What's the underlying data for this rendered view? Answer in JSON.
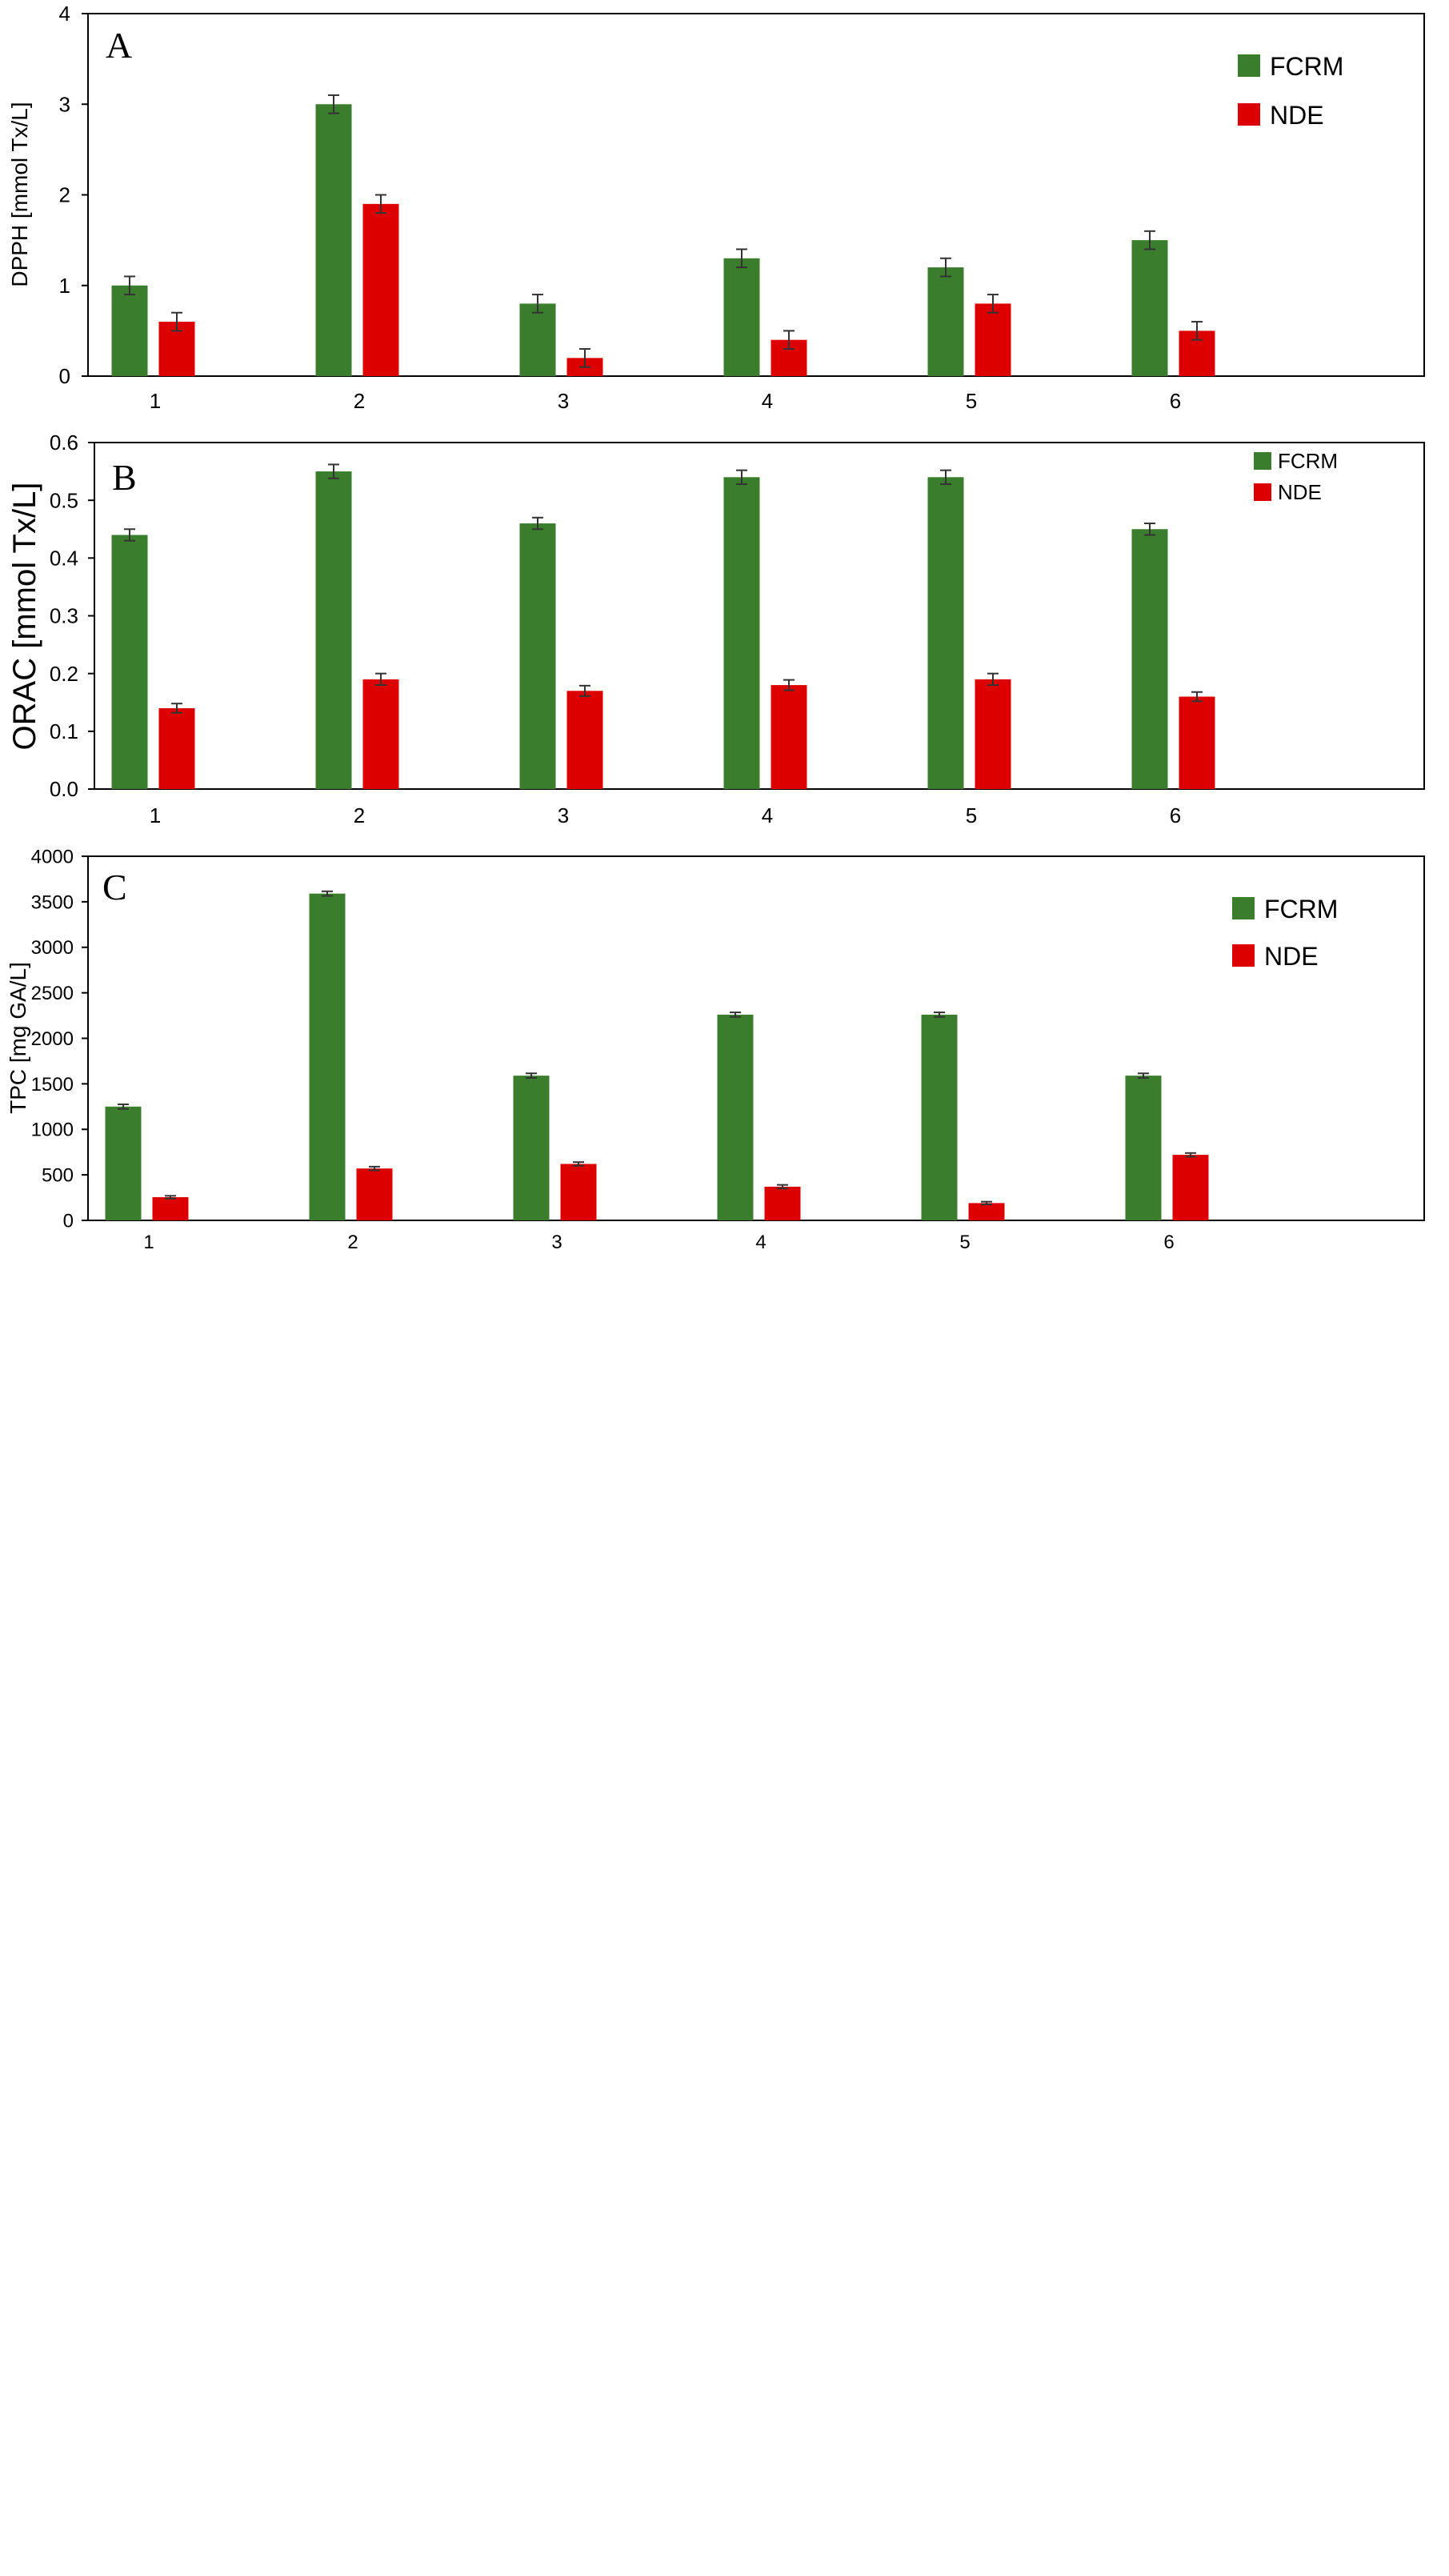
{
  "colors": {
    "FCRM": "#3a7d2c",
    "NDE": "#dd0000",
    "error_bar": "#333333",
    "frame": "#000000"
  },
  "chart_data": [
    {
      "type": "bar",
      "panel": "A",
      "categories": [
        "1",
        "2",
        "3",
        "4",
        "5",
        "6"
      ],
      "ylabel": "DPPH [mmol Tx/L]",
      "ylim": [
        0,
        4
      ],
      "yticks": [
        "0",
        "1",
        "2",
        "3",
        "4"
      ],
      "legend_position": "top-right",
      "series": [
        {
          "name": "FCRM",
          "values": [
            1.0,
            3.0,
            0.8,
            1.3,
            1.2,
            1.5
          ],
          "errors": [
            0.1,
            0.1,
            0.1,
            0.1,
            0.1,
            0.1
          ]
        },
        {
          "name": "NDE",
          "values": [
            0.6,
            1.9,
            0.2,
            0.4,
            0.8,
            0.5
          ],
          "errors": [
            0.1,
            0.1,
            0.1,
            0.1,
            0.1,
            0.1
          ]
        }
      ]
    },
    {
      "type": "bar",
      "panel": "B",
      "categories": [
        "1",
        "2",
        "3",
        "4",
        "5",
        "6"
      ],
      "ylabel": "ORAC [mmol Tx/L]",
      "ylim": [
        0,
        0.6
      ],
      "yticks": [
        "0.0",
        "0.1",
        "0.2",
        "0.3",
        "0.4",
        "0.5",
        "0.6"
      ],
      "legend_position": "top-right",
      "series": [
        {
          "name": "FCRM",
          "values": [
            0.44,
            0.55,
            0.46,
            0.54,
            0.54,
            0.45
          ],
          "errors": [
            0.01,
            0.012,
            0.01,
            0.012,
            0.012,
            0.01
          ]
        },
        {
          "name": "NDE",
          "values": [
            0.14,
            0.19,
            0.17,
            0.18,
            0.19,
            0.16
          ],
          "errors": [
            0.008,
            0.01,
            0.009,
            0.009,
            0.01,
            0.008
          ]
        }
      ]
    },
    {
      "type": "bar",
      "panel": "C",
      "categories": [
        "1",
        "2",
        "3",
        "4",
        "5",
        "6"
      ],
      "ylabel": "TPC [mg GA/L]",
      "ylim": [
        0,
        4000
      ],
      "yticks": [
        "0",
        "500",
        "1000",
        "1500",
        "2000",
        "2500",
        "3000",
        "3500",
        "4000"
      ],
      "legend_position": "top-right",
      "series": [
        {
          "name": "FCRM",
          "values": [
            1250,
            3590,
            1590,
            2260,
            2260,
            1590
          ],
          "errors": [
            25,
            25,
            25,
            25,
            25,
            25
          ]
        },
        {
          "name": "NDE",
          "values": [
            255,
            570,
            620,
            370,
            190,
            720
          ],
          "errors": [
            15,
            20,
            20,
            20,
            15,
            20
          ]
        }
      ]
    }
  ]
}
